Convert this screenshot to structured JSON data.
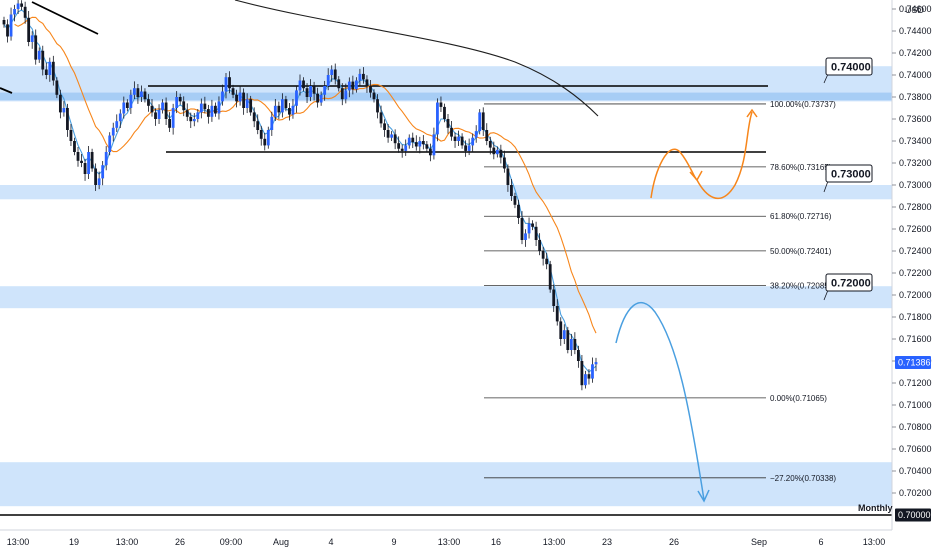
{
  "chart_data": {
    "type": "candlestick",
    "price_axis_label": "USD",
    "timeframe_label": "Monthly",
    "ylim": [
      0.699,
      0.7475
    ],
    "y_ticks": [
      "0.74600",
      "0.74400",
      "0.74200",
      "0.74000",
      "0.73800",
      "0.73600",
      "0.73400",
      "0.73200",
      "0.73000",
      "0.72800",
      "0.72600",
      "0.72400",
      "0.72200",
      "0.72000",
      "0.71800",
      "0.71600",
      "0.71400",
      "0.71200",
      "0.71000",
      "0.70800",
      "0.70600",
      "0.70400",
      "0.70200"
    ],
    "x_ticks": [
      "13:00",
      "19",
      "13:00",
      "26",
      "09:00",
      "Aug",
      "4",
      "9",
      "13:00",
      "16",
      "13:00",
      "23",
      "26",
      "Sep",
      "6",
      "13:00"
    ],
    "current_price": {
      "label": "0.71386",
      "value": 0.71386
    },
    "reference_price": {
      "label": "0.70000",
      "value": 0.7
    },
    "zones": [
      {
        "low": 0.7376,
        "high": 0.7408,
        "color": "#cfe4fb"
      },
      {
        "low": 0.7287,
        "high": 0.73,
        "color": "#cfe4fb"
      },
      {
        "low": 0.7188,
        "high": 0.7208,
        "color": "#cfe4fb"
      },
      {
        "low": 0.7008,
        "high": 0.7048,
        "color": "#cfe4fb"
      },
      {
        "low": 0.7377,
        "high": 0.7384,
        "color": "#a7cdf5"
      }
    ],
    "levels": [
      {
        "price": 0.739,
        "color": "#000000"
      },
      {
        "price": 0.733,
        "color": "#000000"
      },
      {
        "price": 0.7,
        "color": "#000000"
      }
    ],
    "fibonacci": [
      {
        "label": "100.00%(0.73737)",
        "value": 0.73737
      },
      {
        "label": "78.60%(0.73165)",
        "value": 0.73165
      },
      {
        "label": "61.80%(0.72716)",
        "value": 0.72716
      },
      {
        "label": "50.00%(0.72401)",
        "value": 0.72401
      },
      {
        "label": "38.20%(0.72085)",
        "value": 0.72085
      },
      {
        "label": "0.00%(0.71065)",
        "value": 0.71065
      },
      {
        "label": "−27.20%(0.70338)",
        "value": 0.70338
      }
    ],
    "callouts": [
      {
        "label": "0.74000",
        "value": 0.74
      },
      {
        "label": "0.73000",
        "value": 0.73
      },
      {
        "label": "0.72000",
        "value": 0.72
      }
    ],
    "series": [
      {
        "color": "#2962ff",
        "style": "candles"
      },
      {
        "color": "#4a9fe0",
        "style": "fast-average"
      },
      {
        "color": "#f7861b",
        "style": "slow-average"
      },
      {
        "color": "#1e1e1e",
        "style": "long-average"
      }
    ],
    "projections": [
      {
        "color": "#f7861b",
        "style": "bullish-path"
      },
      {
        "color": "#4a9fe0",
        "style": "bearish-path"
      }
    ],
    "closes": [
      0.7446,
      0.7435,
      0.7455,
      0.746,
      0.7465,
      0.7462,
      0.7452,
      0.743,
      0.7436,
      0.7414,
      0.7422,
      0.7405,
      0.74,
      0.7412,
      0.7395,
      0.7382,
      0.7366,
      0.737,
      0.735,
      0.734,
      0.733,
      0.7322,
      0.732,
      0.731,
      0.733,
      0.7315,
      0.73,
      0.7306,
      0.7318,
      0.733,
      0.7345,
      0.7352,
      0.7358,
      0.7365,
      0.7375,
      0.737,
      0.7382,
      0.7388,
      0.738,
      0.7385,
      0.7378,
      0.7372,
      0.7366,
      0.736,
      0.7368,
      0.7375,
      0.736,
      0.7352,
      0.737,
      0.738,
      0.7376,
      0.7368,
      0.7362,
      0.7358,
      0.736,
      0.7366,
      0.7374,
      0.7369,
      0.7362,
      0.7372,
      0.7365,
      0.7376,
      0.7385,
      0.7398,
      0.7388,
      0.7382,
      0.7376,
      0.7384,
      0.737,
      0.7378,
      0.7366,
      0.7358,
      0.735,
      0.7342,
      0.7336,
      0.735,
      0.7362,
      0.7372,
      0.7366,
      0.7378,
      0.737,
      0.7364,
      0.7372,
      0.7386,
      0.7395,
      0.7388,
      0.738,
      0.739,
      0.7383,
      0.7375,
      0.7382,
      0.739,
      0.74,
      0.7405,
      0.7396,
      0.7388,
      0.7378,
      0.7386,
      0.7394,
      0.7387,
      0.7395,
      0.7401,
      0.7396,
      0.739,
      0.7384,
      0.7378,
      0.7366,
      0.7356,
      0.735,
      0.7343,
      0.7346,
      0.7338,
      0.7333,
      0.7331,
      0.7336,
      0.7343,
      0.7339,
      0.7335,
      0.734,
      0.7337,
      0.7333,
      0.7327,
      0.7346,
      0.7375,
      0.7371,
      0.736,
      0.7352,
      0.7344,
      0.734,
      0.7344,
      0.7336,
      0.7331,
      0.7336,
      0.7343,
      0.7349,
      0.7366,
      0.735,
      0.734,
      0.7334,
      0.7328,
      0.7332,
      0.7325,
      0.7315,
      0.73,
      0.729,
      0.7282,
      0.727,
      0.725,
      0.7256,
      0.7265,
      0.7262,
      0.725,
      0.724,
      0.7233,
      0.7228,
      0.7205,
      0.719,
      0.7176,
      0.716,
      0.7168,
      0.715,
      0.716,
      0.715,
      0.714,
      0.7118,
      0.7128,
      0.7124,
      0.7137,
      0.7139
    ]
  }
}
